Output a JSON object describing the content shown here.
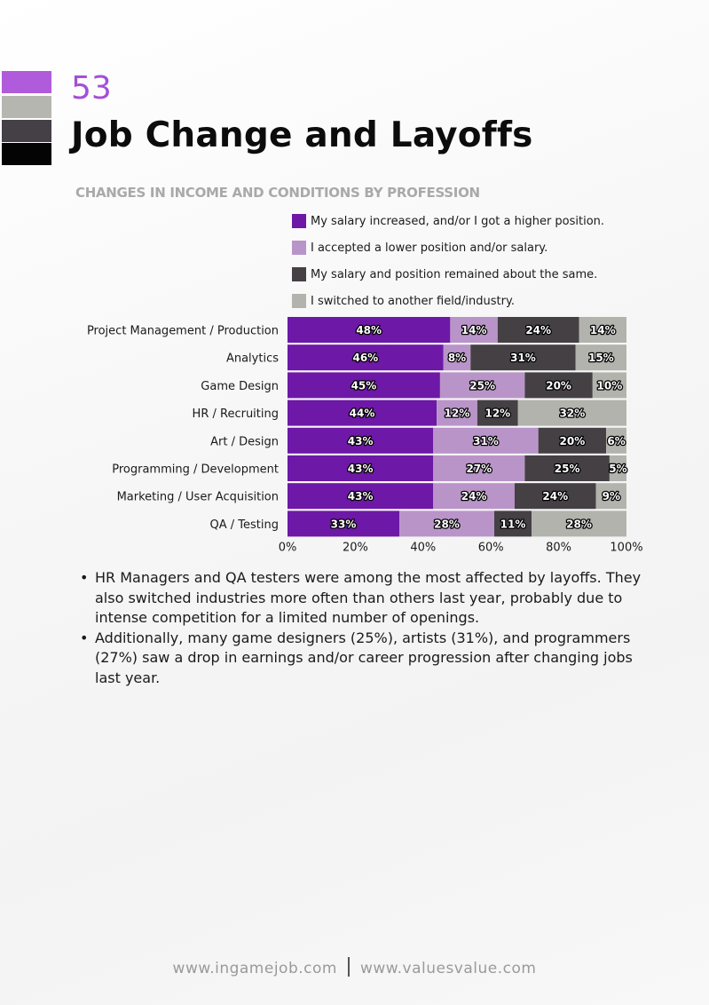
{
  "page": {
    "number": "53",
    "title": "Job Change and Layoffs",
    "swatch_colors": [
      "#b05bdc",
      "#b6b6b0",
      "#444046",
      "#040404"
    ]
  },
  "chart_data": {
    "type": "bar",
    "orientation": "horizontal",
    "stacked": true,
    "title": "CHANGES IN INCOME AND CONDITIONS BY PROFESSION",
    "xlabel": "",
    "ylabel": "",
    "xlim": [
      0,
      100
    ],
    "x_ticks": [
      "0%",
      "20%",
      "40%",
      "60%",
      "80%",
      "100%"
    ],
    "legend_position": "top",
    "categories": [
      "Project Management / Production",
      "Analytics",
      "Game Design",
      "HR / Recruiting",
      "Art / Design",
      "Programming / Development",
      "Marketing / User Acquisition",
      "QA / Testing"
    ],
    "series": [
      {
        "name": "My salary increased, and/or I got a higher position.",
        "color": "#6d18a6",
        "values": [
          48,
          46,
          45,
          44,
          43,
          43,
          43,
          33
        ]
      },
      {
        "name": "I accepted a lower position and/or salary.",
        "color": "#b994c9",
        "values": [
          14,
          8,
          25,
          12,
          31,
          27,
          24,
          28
        ]
      },
      {
        "name": "My salary and position remained about the same.",
        "color": "#444044",
        "values": [
          24,
          31,
          20,
          12,
          20,
          25,
          24,
          11
        ]
      },
      {
        "name": "I switched to another field/industry.",
        "color": "#b3b3ad",
        "values": [
          14,
          15,
          10,
          32,
          6,
          5,
          9,
          28
        ]
      }
    ]
  },
  "notes": [
    "HR Managers and QA testers were among the most affected by layoffs. They also switched industries more often than others last year, probably due to intense competition for a limited number of openings.",
    "Additionally, many game designers (25%), artists (31%), and programmers (27%) saw a drop in earnings and/or career progression after changing jobs last year."
  ],
  "footer": {
    "left": "www.ingamejob.com",
    "right": "www.valuesvalue.com"
  }
}
